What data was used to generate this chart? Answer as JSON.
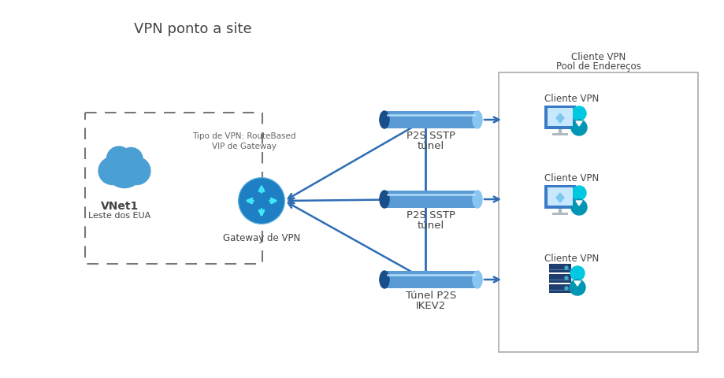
{
  "title": "VPN ponto a site",
  "bg_color": "#ffffff",
  "cloud_color": "#4a9fd4",
  "gateway_color": "#1e7fc4",
  "gateway_arrow_color": "#40e8f8",
  "tunnel_body": "#5b9bd5",
  "tunnel_dark": "#1a4e8a",
  "tunnel_light": "#8ac4f0",
  "arrow_color": "#2e6db4",
  "dashed_color": "#777777",
  "client_box_color": "#aaaaaa",
  "text_color": "#444444",
  "text_small_color": "#666666",
  "vnet_label": "VNet1",
  "vnet_sublabel": "Leste dos EUA",
  "gateway_label": "Gateway de VPN",
  "vpn_type_line1": "Tipo de VPN: RouteBased",
  "vpn_type_line2": "VIP de Gateway",
  "tunnel1_line1": "P2S SSTP",
  "tunnel1_line2": "túnel",
  "tunnel2_line1": "P2S SSTP",
  "tunnel2_line2": "túnel",
  "tunnel3_line1": "Túnel P2S",
  "tunnel3_line2": "IKEV2",
  "pool_title": "Cliente VPN",
  "pool_subtitle": "Pool de Endereços",
  "client1_label": "Cliente VPN",
  "client2_label": "Cliente VPN",
  "client3_label": "Cliente VPN",
  "monitor_color": "#3a7bc8",
  "monitor_grad": "#5a9ee0",
  "screen_color": "#c8e8ff",
  "cube_color": "#7ec8f0",
  "stand_color": "#b0b8c0",
  "server_color": "#1e3f6e",
  "server_line_color": "#4a7aaa",
  "user_color_top": "#00c8e0",
  "user_color_bot": "#0096b4"
}
